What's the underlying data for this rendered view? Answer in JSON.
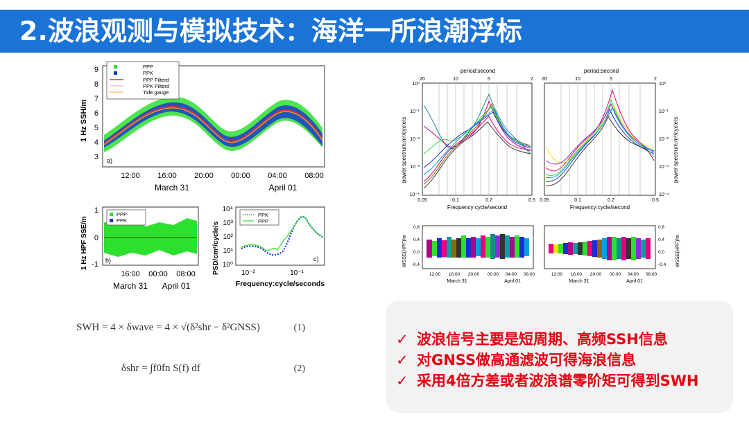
{
  "slide": {
    "title": "2.波浪观测与模拟技术：海洋一所浪潮浮标",
    "colors": {
      "title_bg": "#1a73d6",
      "title_text": "#ffffff",
      "bullet_text": "#e60012",
      "callout_bg": "#f2f2f2"
    }
  },
  "figure_left": {
    "panel_a": {
      "ylabel": "1 Hz SSH/m",
      "yticks": [
        "9",
        "8",
        "7",
        "6",
        "5",
        "4",
        "3"
      ],
      "xticks": [
        "12:00",
        "16:00",
        "20:00",
        "00:00",
        "04:00",
        "08:00"
      ],
      "date_labels": [
        "March 31",
        "April 01"
      ],
      "panel_label": "a)",
      "legend": [
        "PPP",
        "PPK",
        "PPP Filterd",
        "PPK Filterd",
        "Tide gauge"
      ]
    },
    "panel_b": {
      "ylabel": "1 Hz HPF SSE/m",
      "yticks": [
        "1",
        "0",
        "-1"
      ],
      "xticks": [
        "16:00",
        "00:00",
        "08:00"
      ],
      "date_labels": [
        "March 31",
        "April 01"
      ],
      "panel_label": "b)",
      "legend": [
        "PPP",
        "PPK"
      ]
    },
    "panel_c": {
      "ylabel": "PSD/cm²/cycle/s",
      "yticks": [
        "10⁴",
        "10³",
        "10²",
        "10¹",
        "10⁰"
      ],
      "xticks": [
        "10⁻²",
        "10⁻¹"
      ],
      "xlabel": "Frequency:cycle/seconds",
      "panel_label": "c)",
      "legend": [
        "PPK",
        "PPP"
      ]
    }
  },
  "figure_right": {
    "spectra": {
      "top_axis_label": "period:second",
      "top_ticks": [
        "20",
        "10",
        "5",
        "2"
      ],
      "bottom_ticks": [
        "0.05",
        "0.1",
        "0.2",
        "0.5"
      ],
      "xlabel": "Frequency:cycle/second",
      "ylabel": "power spectrum:m²/cycle/s",
      "yticks": [
        "10⁰",
        "10⁻¹",
        "10⁻²",
        "10⁻³",
        "10⁻⁴"
      ]
    },
    "wsse": {
      "ylabel": "WSSE(HPF)/m",
      "yticks": [
        "0.8",
        "0.4",
        "0.0",
        "-0.4"
      ],
      "xticks": [
        "12:00",
        "16:00",
        "20:00",
        "00:00",
        "04:00",
        "08:00"
      ],
      "date_labels": [
        "March 31",
        "April 01"
      ]
    }
  },
  "formulas": {
    "eq1": "SWH = 4 × δwave = 4 × √(δ²shr − δ²GNSS)",
    "eq1_num": "(1)",
    "eq2": "δshr = ∫f0fn S(f) df",
    "eq2_num": "(2)"
  },
  "bullets": [
    "波浪信号主要是短周期、高频SSH信息",
    "对GNSS做高通滤波可得海浪信息",
    "采用4倍方差或者波浪谱零阶矩可得到SWH"
  ]
}
